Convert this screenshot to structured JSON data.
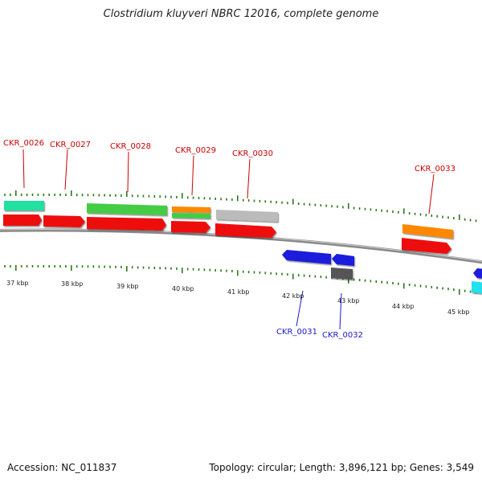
{
  "title": "Clostridium kluyveri NBRC 12016, complete genome",
  "footer": {
    "accession": "Accession: NC_011837",
    "summary": "Topology: circular; Length: 3,896,121 bp; Genes: 3,549"
  },
  "colors": {
    "label_forward": "#cc0000",
    "label_reverse": "#1a1acc",
    "tick": "#2a7a1a",
    "backbone": "#8a8a8a",
    "red": "#ee1111",
    "green": "#44cc44",
    "orange": "#ff8800",
    "gray": "#bbbbbb",
    "aqua": "#22e0a0",
    "blue": "#1a1add",
    "dark": "#555555",
    "cyan": "#22e0ee"
  },
  "gene_labels": [
    {
      "text": "CKR_0026",
      "strand": "forward"
    },
    {
      "text": "CKR_0027",
      "strand": "forward"
    },
    {
      "text": "CKR_0028",
      "strand": "forward"
    },
    {
      "text": "CKR_0029",
      "strand": "forward"
    },
    {
      "text": "CKR_0030",
      "strand": "forward"
    },
    {
      "text": "CKR_0033",
      "strand": "forward"
    },
    {
      "text": "CKR_0031",
      "strand": "reverse"
    },
    {
      "text": "CKR_0032",
      "strand": "reverse"
    }
  ],
  "kbp_labels": [
    "37 kbp",
    "38 kbp",
    "39 kbp",
    "40 kbp",
    "41 kbp",
    "42 kbp",
    "43 kbp",
    "44 kbp",
    "45 kbp"
  ]
}
